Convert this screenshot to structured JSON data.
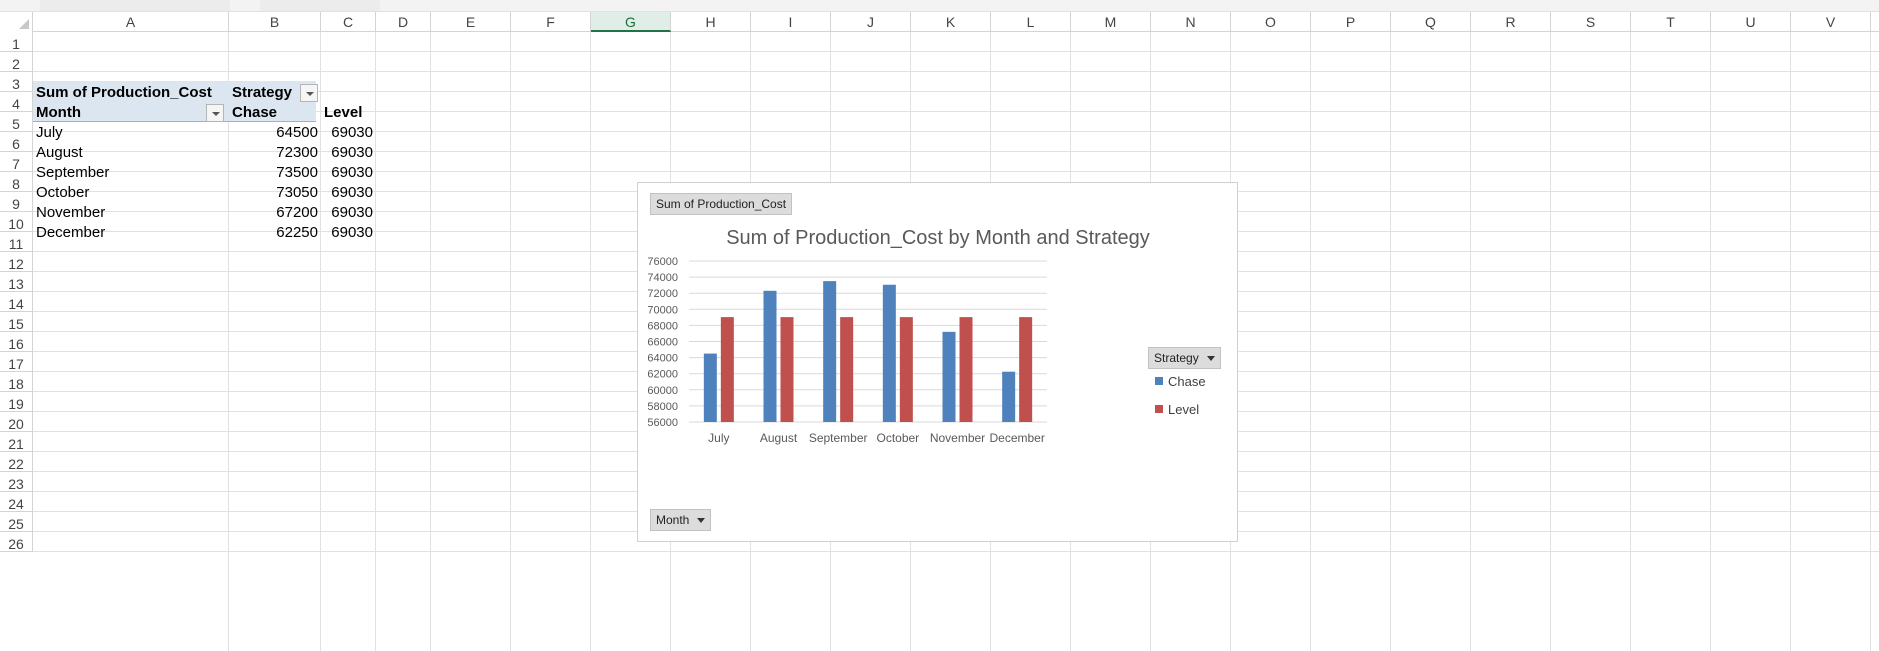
{
  "sheet": {
    "selected_column": "G",
    "columns": [
      "A",
      "B",
      "C",
      "D",
      "E",
      "F",
      "G",
      "H",
      "I",
      "J",
      "K",
      "L",
      "M",
      "N",
      "O",
      "P",
      "Q",
      "R",
      "S",
      "T",
      "U",
      "V"
    ],
    "rows": [
      "1",
      "2",
      "3",
      "4",
      "5",
      "6",
      "7",
      "8",
      "9",
      "10",
      "11",
      "12",
      "13",
      "14",
      "15",
      "16",
      "17",
      "18",
      "19",
      "20",
      "21",
      "22",
      "23",
      "24",
      "25",
      "26"
    ]
  },
  "pivot": {
    "value_field": "Sum of Production_Cost",
    "column_field": "Strategy",
    "row_field": "Month",
    "col_labels": [
      "Chase",
      "Level"
    ],
    "rows": [
      {
        "month": "July",
        "chase": "64500",
        "level": "69030"
      },
      {
        "month": "August",
        "chase": "72300",
        "level": "69030"
      },
      {
        "month": "September",
        "chase": "73500",
        "level": "69030"
      },
      {
        "month": "October",
        "chase": "73050",
        "level": "69030"
      },
      {
        "month": "November",
        "chase": "67200",
        "level": "69030"
      },
      {
        "month": "December",
        "chase": "62250",
        "level": "69030"
      }
    ]
  },
  "chart": {
    "value_button": "Sum of Production_Cost",
    "legend_button": "Strategy",
    "axis_button": "Month"
  },
  "chart_data": {
    "type": "bar",
    "title": "Sum of Production_Cost by Month and Strategy",
    "categories": [
      "July",
      "August",
      "September",
      "October",
      "November",
      "December"
    ],
    "series": [
      {
        "name": "Chase",
        "values": [
          64500,
          72300,
          73500,
          73050,
          67200,
          62250
        ],
        "color": "#4f81bd"
      },
      {
        "name": "Level",
        "values": [
          69030,
          69030,
          69030,
          69030,
          69030,
          69030
        ],
        "color": "#c0504d"
      }
    ],
    "ylim": [
      56000,
      76000
    ],
    "yticks": [
      "56000",
      "58000",
      "60000",
      "62000",
      "64000",
      "66000",
      "68000",
      "70000",
      "72000",
      "74000",
      "76000"
    ],
    "grid": true,
    "legend": "right"
  }
}
